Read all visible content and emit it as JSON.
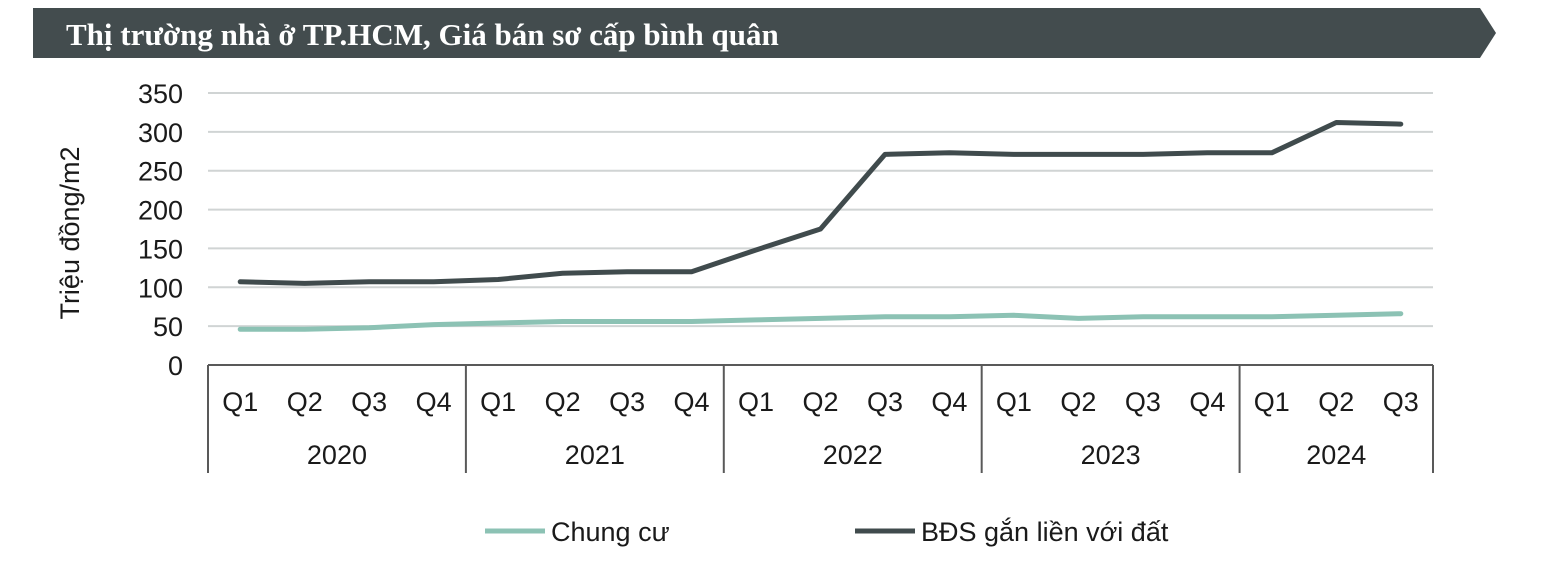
{
  "chart_data": {
    "type": "line",
    "title": "Thị trường nhà ở TP.HCM, Giá bán sơ cấp bình quân",
    "ylabel": "Triệu đồng/m2",
    "xlabel": "",
    "ylim": [
      0,
      350
    ],
    "yticks": [
      0,
      50,
      100,
      150,
      200,
      250,
      300,
      350
    ],
    "categories": [
      "Q1",
      "Q2",
      "Q3",
      "Q4",
      "Q1",
      "Q2",
      "Q3",
      "Q4",
      "Q1",
      "Q2",
      "Q3",
      "Q4",
      "Q1",
      "Q2",
      "Q3",
      "Q4",
      "Q1",
      "Q2",
      "Q3"
    ],
    "years": [
      {
        "label": "2020",
        "quarters": 4
      },
      {
        "label": "2021",
        "quarters": 4
      },
      {
        "label": "2022",
        "quarters": 4
      },
      {
        "label": "2023",
        "quarters": 4
      },
      {
        "label": "2024",
        "quarters": 3
      }
    ],
    "series": [
      {
        "name": "Chung cư",
        "color": "#8cc2b4",
        "values": [
          46,
          46,
          48,
          52,
          54,
          56,
          56,
          56,
          58,
          60,
          62,
          62,
          64,
          60,
          62,
          62,
          62,
          64,
          66
        ]
      },
      {
        "name": "BĐS gắn liền với đất",
        "color": "#404b4d",
        "values": [
          107,
          105,
          107,
          107,
          110,
          118,
          120,
          120,
          148,
          175,
          271,
          273,
          271,
          271,
          271,
          273,
          273,
          312,
          310
        ]
      }
    ],
    "legend_position": "bottom",
    "grid": true
  },
  "colors": {
    "title_band": "#434c4e",
    "grid": "#d0d4d4",
    "axis": "#595959"
  }
}
